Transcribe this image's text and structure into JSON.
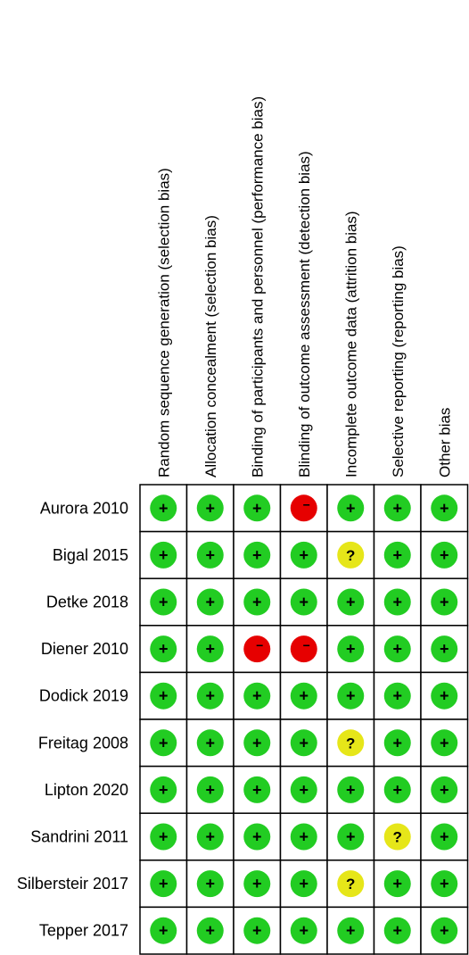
{
  "chart_data": {
    "type": "table",
    "domains": [
      "Random sequence generation (selection bias)",
      "Allocation concealment (selection bias)",
      "Binding of participants and personnel (performance bias)",
      "Blinding of outcome assessment (detection bias)",
      "Incomplete outcome data (attrition bias)",
      "Selective reporting (reporting bias)",
      "Other bias"
    ],
    "studies": [
      "Aurora 2010",
      "Bigal 2015",
      "Detke 2018",
      "Diener 2010",
      "Dodick 2019",
      "Freitag 2008",
      "Lipton 2020",
      "Sandrini 2011",
      "Silbersteir 2017",
      "Tepper 2017"
    ],
    "judgements": [
      [
        "low",
        "low",
        "low",
        "high",
        "low",
        "low",
        "low"
      ],
      [
        "low",
        "low",
        "low",
        "low",
        "unclear",
        "low",
        "low"
      ],
      [
        "low",
        "low",
        "low",
        "low",
        "low",
        "low",
        "low"
      ],
      [
        "low",
        "low",
        "high",
        "high",
        "low",
        "low",
        "low"
      ],
      [
        "low",
        "low",
        "low",
        "low",
        "low",
        "low",
        "low"
      ],
      [
        "low",
        "low",
        "low",
        "low",
        "unclear",
        "low",
        "low"
      ],
      [
        "low",
        "low",
        "low",
        "low",
        "low",
        "low",
        "low"
      ],
      [
        "low",
        "low",
        "low",
        "low",
        "low",
        "unclear",
        "low"
      ],
      [
        "low",
        "low",
        "low",
        "low",
        "unclear",
        "low",
        "low"
      ],
      [
        "low",
        "low",
        "low",
        "low",
        "low",
        "low",
        "low"
      ]
    ],
    "symbols": {
      "low": "+",
      "unclear": "?",
      "high": "−"
    },
    "colors": {
      "low": "#22cc22",
      "unclear": "#e6e619",
      "high": "#e60000"
    }
  }
}
